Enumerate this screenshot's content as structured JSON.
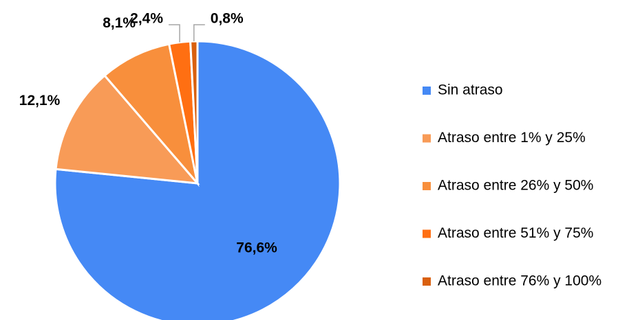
{
  "chart_data": {
    "type": "pie",
    "categories": [
      "Sin atraso",
      "Atraso entre 1% y 25%",
      "Atraso entre 26% y 50%",
      "Atraso entre 51% y 75%",
      "Atraso entre 76% y 100%"
    ],
    "values": [
      76.6,
      12.1,
      8.1,
      2.4,
      0.8
    ],
    "value_labels": [
      "76,6%",
      "12,1%",
      "8,1%",
      "2,4%",
      "0,8%"
    ],
    "colors": [
      "#4589f5",
      "#f89b57",
      "#f88f3c",
      "#ff6f12",
      "#d9600f"
    ],
    "legend": "right"
  }
}
